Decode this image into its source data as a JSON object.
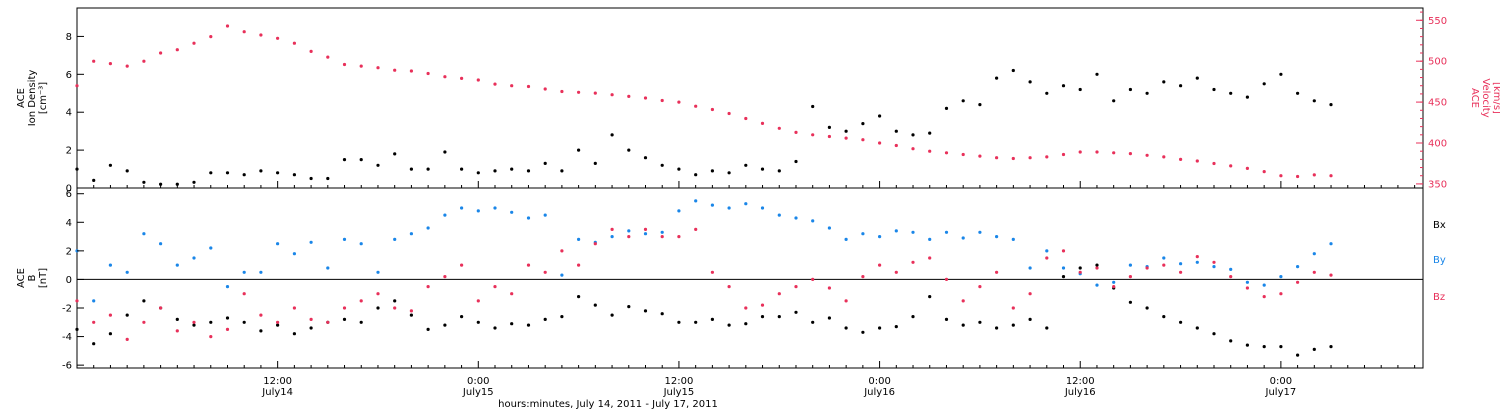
{
  "colors": {
    "black": "#000000",
    "pink": "#e8305a",
    "blue": "#1a86e8"
  },
  "xaxis": {
    "title": "hours:minutes, July 14, 2011 - July 17, 2011",
    "ticks": [
      {
        "hour": 12,
        "time": "12:00",
        "date": "July14"
      },
      {
        "hour": 24,
        "time": "0:00",
        "date": "July15"
      },
      {
        "hour": 36,
        "time": "12:00",
        "date": "July15"
      },
      {
        "hour": 48,
        "time": "0:00",
        "date": "July16"
      },
      {
        "hour": 60,
        "time": "12:00",
        "date": "July16"
      },
      {
        "hour": 72,
        "time": "0:00",
        "date": "July17"
      }
    ]
  },
  "chart_data": [
    {
      "type": "scatter",
      "panel": "top",
      "xlim": [
        0,
        80.5
      ],
      "left_axis": {
        "label_lines": [
          "ACE",
          "Ion Density",
          "[cm⁻³]"
        ],
        "ylim": [
          0,
          9.5
        ],
        "ticks": [
          "0",
          "2",
          "4",
          "6",
          "8"
        ]
      },
      "right_axis": {
        "label_lines": [
          "ACE",
          "Velocity",
          "[km/s]"
        ],
        "ylim": [
          345,
          565
        ],
        "ticks": [
          "350",
          "400",
          "450",
          "500",
          "550"
        ]
      },
      "series": [
        {
          "axis": "left",
          "color": "black",
          "x": [
            0,
            1,
            2,
            3,
            4,
            5,
            6,
            7,
            8,
            9,
            10,
            11,
            12,
            13,
            14,
            15,
            16,
            17,
            18,
            19,
            20,
            21,
            22,
            23,
            24,
            25,
            26,
            27,
            28,
            29,
            30,
            31,
            32,
            33,
            34,
            35,
            36,
            37,
            38,
            39,
            40,
            41,
            42,
            43,
            44,
            45,
            46,
            47,
            48,
            49,
            50,
            51,
            52,
            53,
            54,
            55,
            56,
            57,
            58,
            59,
            60,
            61,
            62,
            63,
            64,
            65,
            66,
            67,
            68,
            69,
            70,
            71,
            72,
            73,
            74,
            75
          ],
          "y": [
            1.0,
            0.4,
            1.2,
            0.9,
            0.3,
            0.2,
            0.2,
            0.3,
            0.8,
            0.8,
            0.7,
            0.9,
            0.8,
            0.7,
            0.5,
            0.5,
            1.5,
            1.5,
            1.2,
            1.8,
            1.0,
            1.0,
            1.9,
            1.0,
            0.8,
            0.9,
            1.0,
            0.9,
            1.3,
            0.9,
            2.0,
            1.3,
            2.8,
            2.0,
            1.6,
            1.2,
            1.0,
            0.7,
            0.9,
            0.8,
            1.2,
            1.0,
            0.9,
            1.4,
            4.3,
            3.2,
            3.0,
            3.4,
            3.8,
            3.0,
            2.8,
            2.9,
            4.2,
            4.6,
            4.4,
            5.8,
            6.2,
            5.6,
            5.0,
            5.4,
            5.2,
            6.0,
            4.6,
            5.2,
            5.0,
            5.6,
            5.4,
            5.8,
            5.2,
            5.0,
            4.8,
            5.5,
            6.0,
            5.0,
            4.6,
            4.4
          ]
        },
        {
          "axis": "right",
          "color": "pink",
          "x": [
            0,
            1,
            2,
            3,
            4,
            5,
            6,
            7,
            8,
            9,
            10,
            11,
            12,
            13,
            14,
            15,
            16,
            17,
            18,
            19,
            20,
            21,
            22,
            23,
            24,
            25,
            26,
            27,
            28,
            29,
            30,
            31,
            32,
            33,
            34,
            35,
            36,
            37,
            38,
            39,
            40,
            41,
            42,
            43,
            44,
            45,
            46,
            47,
            48,
            49,
            50,
            51,
            52,
            53,
            54,
            55,
            56,
            57,
            58,
            59,
            60,
            61,
            62,
            63,
            64,
            65,
            66,
            67,
            68,
            69,
            70,
            71,
            72,
            73,
            74,
            75
          ],
          "y": [
            470,
            500,
            497,
            494,
            500,
            510,
            514,
            522,
            530,
            543,
            536,
            532,
            528,
            522,
            512,
            505,
            496,
            494,
            492,
            489,
            488,
            485,
            481,
            479,
            477,
            472,
            470,
            469,
            466,
            463,
            462,
            461,
            459,
            457,
            455,
            452,
            450,
            445,
            441,
            436,
            430,
            424,
            418,
            413,
            410,
            408,
            406,
            404,
            400,
            397,
            393,
            390,
            388,
            386,
            384,
            382,
            381,
            382,
            383,
            386,
            389,
            389,
            388,
            387,
            385,
            383,
            380,
            378,
            375,
            372,
            369,
            365,
            360,
            359,
            361,
            360
          ]
        }
      ]
    },
    {
      "type": "scatter",
      "panel": "bottom",
      "xlim": [
        0,
        80.5
      ],
      "left_axis": {
        "label_lines": [
          "ACE",
          "B",
          "[nT]"
        ],
        "ylim": [
          -6.2,
          6.4
        ],
        "ticks": [
          "-6",
          "-4",
          "-2",
          "0",
          "2",
          "4",
          "6"
        ]
      },
      "legend": [
        "Bx",
        "By",
        "Bz"
      ],
      "series": [
        {
          "name": "Bx",
          "color": "black",
          "x": [
            0,
            1,
            2,
            3,
            4,
            5,
            6,
            7,
            8,
            9,
            10,
            11,
            12,
            13,
            14,
            15,
            16,
            17,
            18,
            19,
            20,
            21,
            22,
            23,
            24,
            25,
            26,
            27,
            28,
            29,
            30,
            31,
            32,
            33,
            34,
            35,
            36,
            37,
            38,
            39,
            40,
            41,
            42,
            43,
            44,
            45,
            46,
            47,
            48,
            49,
            50,
            51,
            52,
            53,
            54,
            55,
            56,
            57,
            58,
            59,
            60,
            61,
            62,
            63,
            64,
            65,
            66,
            67,
            68,
            69,
            70,
            71,
            72,
            73,
            74,
            75
          ],
          "y": [
            -3.5,
            -4.5,
            -3.8,
            -2.5,
            -1.5,
            -2.0,
            -2.8,
            -3.2,
            -3.0,
            -2.7,
            -3.0,
            -3.6,
            -3.2,
            -3.8,
            -3.4,
            -3.0,
            -2.8,
            -3.0,
            -2.0,
            -1.5,
            -2.5,
            -3.5,
            -3.2,
            -2.6,
            -3.0,
            -3.4,
            -3.1,
            -3.2,
            -2.8,
            -2.6,
            -1.2,
            -1.8,
            -2.5,
            -1.9,
            -2.2,
            -2.4,
            -3.0,
            -3.0,
            -2.8,
            -3.2,
            -3.1,
            -2.6,
            -2.6,
            -2.3,
            -3.0,
            -2.7,
            -3.4,
            -3.7,
            -3.4,
            -3.3,
            -2.6,
            -1.2,
            -2.8,
            -3.2,
            -3.0,
            -3.4,
            -3.2,
            -2.8,
            -3.4,
            0.2,
            0.8,
            1.0,
            -0.6,
            -1.6,
            -2.0,
            -2.6,
            -3.0,
            -3.4,
            -3.8,
            -4.3,
            -4.6,
            -4.7,
            -4.7,
            -5.3,
            -4.9,
            -4.7
          ]
        },
        {
          "name": "By",
          "color": "blue",
          "x": [
            0,
            1,
            2,
            3,
            4,
            5,
            6,
            7,
            8,
            9,
            10,
            11,
            12,
            13,
            14,
            15,
            16,
            17,
            18,
            19,
            20,
            21,
            22,
            23,
            24,
            25,
            26,
            27,
            28,
            29,
            30,
            31,
            32,
            33,
            34,
            35,
            36,
            37,
            38,
            39,
            40,
            41,
            42,
            43,
            44,
            45,
            46,
            47,
            48,
            49,
            50,
            51,
            52,
            53,
            54,
            55,
            56,
            57,
            58,
            59,
            60,
            61,
            62,
            63,
            64,
            65,
            66,
            67,
            68,
            69,
            70,
            71,
            72,
            73,
            74,
            75
          ],
          "y": [
            2.0,
            -1.5,
            1.0,
            0.5,
            3.2,
            2.5,
            1.0,
            1.5,
            2.2,
            -0.5,
            0.5,
            0.5,
            2.5,
            1.8,
            2.6,
            0.8,
            2.8,
            2.5,
            0.5,
            2.8,
            3.2,
            3.6,
            4.5,
            5.0,
            4.8,
            5.0,
            4.7,
            4.3,
            4.5,
            0.3,
            2.8,
            2.6,
            3.0,
            3.4,
            3.2,
            3.3,
            4.8,
            5.5,
            5.2,
            5.0,
            5.3,
            5.0,
            4.5,
            4.3,
            4.1,
            3.6,
            2.8,
            3.2,
            3.0,
            3.4,
            3.3,
            2.8,
            3.3,
            2.9,
            3.3,
            3.0,
            2.8,
            0.8,
            2.0,
            0.8,
            0.4,
            -0.4,
            -0.2,
            1.0,
            0.9,
            1.5,
            1.1,
            1.2,
            0.9,
            0.7,
            -0.2,
            -0.4,
            0.2,
            0.9,
            1.8,
            2.5
          ]
        },
        {
          "name": "Bz",
          "color": "pink",
          "x": [
            0,
            1,
            2,
            3,
            4,
            5,
            6,
            7,
            8,
            9,
            10,
            11,
            12,
            13,
            14,
            15,
            16,
            17,
            18,
            19,
            20,
            21,
            22,
            23,
            24,
            25,
            26,
            27,
            28,
            29,
            30,
            31,
            32,
            33,
            34,
            35,
            36,
            37,
            38,
            39,
            40,
            41,
            42,
            43,
            44,
            45,
            46,
            47,
            48,
            49,
            50,
            51,
            52,
            53,
            54,
            55,
            56,
            57,
            58,
            59,
            60,
            61,
            62,
            63,
            64,
            65,
            66,
            67,
            68,
            69,
            70,
            71,
            72,
            73,
            74,
            75
          ],
          "y": [
            -1.5,
            -3.0,
            -2.5,
            -4.2,
            -3.0,
            -2.0,
            -3.6,
            -3.0,
            -4.0,
            -3.5,
            -1.0,
            -2.5,
            -3.0,
            -2.0,
            -2.8,
            -3.0,
            -2.0,
            -1.5,
            -1.0,
            -2.0,
            -2.2,
            -0.5,
            0.2,
            1.0,
            -1.5,
            -0.5,
            -1.0,
            1.0,
            0.5,
            2.0,
            1.0,
            2.5,
            3.5,
            3.0,
            3.5,
            3.0,
            3.0,
            3.5,
            0.5,
            -0.5,
            -2.0,
            -1.8,
            -1.0,
            -0.5,
            0.0,
            -0.6,
            -1.5,
            0.2,
            1.0,
            0.5,
            1.2,
            1.5,
            0.0,
            -1.5,
            -0.5,
            0.5,
            -2.0,
            -1.0,
            1.5,
            2.0,
            0.5,
            0.8,
            -0.5,
            0.2,
            0.8,
            1.0,
            0.5,
            1.6,
            1.2,
            0.2,
            -0.6,
            -1.2,
            -1.0,
            -0.2,
            0.5,
            0.3
          ]
        }
      ]
    }
  ]
}
